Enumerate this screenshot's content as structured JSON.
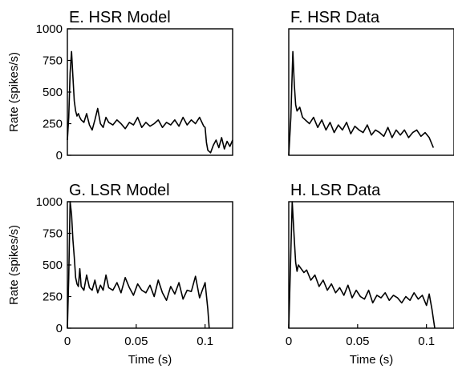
{
  "figure": {
    "ylabel": "Rate (spikes/s)",
    "xlabel": "Time (s)"
  },
  "chart_data": [
    {
      "type": "line",
      "title": "E. HSR Model",
      "xlabel": "",
      "ylabel": "Rate (spikes/s)",
      "xlim": [
        0,
        0.12
      ],
      "ylim": [
        0,
        1000
      ],
      "yticks": [
        "0",
        "250",
        "500",
        "750",
        "1000"
      ],
      "xticks": [],
      "series": [
        {
          "x": [
            0.0,
            0.001,
            0.002,
            0.003,
            0.004,
            0.005,
            0.006,
            0.007,
            0.008,
            0.009,
            0.01,
            0.012,
            0.014,
            0.016,
            0.018,
            0.02,
            0.022,
            0.024,
            0.026,
            0.028,
            0.03,
            0.033,
            0.036,
            0.039,
            0.042,
            0.045,
            0.048,
            0.051,
            0.054,
            0.057,
            0.06,
            0.063,
            0.066,
            0.069,
            0.072,
            0.075,
            0.078,
            0.081,
            0.084,
            0.087,
            0.09,
            0.093,
            0.096,
            0.099,
            0.1,
            0.101,
            0.102,
            0.104,
            0.106,
            0.108,
            0.11,
            0.112,
            0.114,
            0.116,
            0.118,
            0.12
          ],
          "values": [
            120,
            300,
            650,
            820,
            620,
            430,
            350,
            310,
            330,
            300,
            280,
            260,
            330,
            240,
            200,
            280,
            370,
            250,
            220,
            300,
            260,
            240,
            280,
            250,
            210,
            260,
            240,
            300,
            220,
            260,
            230,
            250,
            280,
            220,
            260,
            240,
            280,
            230,
            300,
            240,
            280,
            250,
            300,
            230,
            220,
            100,
            40,
            20,
            80,
            120,
            60,
            140,
            50,
            110,
            70,
            120
          ]
        }
      ]
    },
    {
      "type": "line",
      "title": "F. HSR Data",
      "xlabel": "",
      "ylabel": "",
      "xlim": [
        0,
        0.12
      ],
      "ylim": [
        0,
        1000
      ],
      "yticks": [],
      "xticks": [],
      "series": [
        {
          "x": [
            0.0,
            0.0015,
            0.003,
            0.004,
            0.005,
            0.006,
            0.008,
            0.01,
            0.012,
            0.015,
            0.018,
            0.021,
            0.024,
            0.027,
            0.03,
            0.033,
            0.036,
            0.039,
            0.042,
            0.045,
            0.048,
            0.051,
            0.054,
            0.057,
            0.06,
            0.063,
            0.066,
            0.069,
            0.072,
            0.075,
            0.078,
            0.081,
            0.084,
            0.087,
            0.09,
            0.093,
            0.096,
            0.099,
            0.102,
            0.105
          ],
          "values": [
            0,
            300,
            820,
            560,
            400,
            350,
            380,
            300,
            280,
            250,
            300,
            220,
            280,
            200,
            260,
            180,
            240,
            200,
            260,
            170,
            230,
            200,
            180,
            240,
            160,
            200,
            180,
            150,
            220,
            140,
            200,
            160,
            200,
            140,
            180,
            200,
            150,
            180,
            140,
            60
          ]
        }
      ]
    },
    {
      "type": "line",
      "title": "G. LSR Model",
      "xlabel": "Time (s)",
      "ylabel": "Rate (spikes/s)",
      "xlim": [
        0,
        0.12
      ],
      "ylim": [
        0,
        1000
      ],
      "yticks": [
        "0",
        "250",
        "500",
        "750",
        "1000"
      ],
      "xticks": [
        "0",
        "0.05",
        "0.1"
      ],
      "series": [
        {
          "x": [
            0.0,
            0.001,
            0.002,
            0.003,
            0.004,
            0.005,
            0.006,
            0.007,
            0.008,
            0.009,
            0.01,
            0.012,
            0.014,
            0.016,
            0.018,
            0.02,
            0.022,
            0.024,
            0.026,
            0.028,
            0.03,
            0.033,
            0.036,
            0.039,
            0.042,
            0.045,
            0.048,
            0.051,
            0.054,
            0.057,
            0.06,
            0.063,
            0.066,
            0.069,
            0.072,
            0.075,
            0.078,
            0.081,
            0.084,
            0.087,
            0.09,
            0.093,
            0.096,
            0.098,
            0.1,
            0.102,
            0.103
          ],
          "values": [
            0,
            400,
            1000,
            900,
            700,
            560,
            400,
            350,
            330,
            470,
            330,
            300,
            420,
            320,
            300,
            380,
            280,
            340,
            300,
            420,
            320,
            300,
            360,
            280,
            400,
            320,
            260,
            350,
            300,
            280,
            340,
            250,
            380,
            280,
            220,
            330,
            270,
            360,
            230,
            300,
            290,
            410,
            240,
            300,
            360,
            150,
            0
          ]
        }
      ]
    },
    {
      "type": "line",
      "title": "H. LSR Data",
      "xlabel": "Time (s)",
      "ylabel": "",
      "xlim": [
        0,
        0.12
      ],
      "ylim": [
        0,
        1000
      ],
      "yticks": [],
      "xticks": [
        "0",
        "0.05",
        "0.1"
      ],
      "series": [
        {
          "x": [
            0.0,
            0.0025,
            0.004,
            0.005,
            0.006,
            0.007,
            0.009,
            0.011,
            0.013,
            0.016,
            0.019,
            0.022,
            0.025,
            0.028,
            0.031,
            0.034,
            0.037,
            0.04,
            0.043,
            0.046,
            0.049,
            0.052,
            0.055,
            0.058,
            0.061,
            0.064,
            0.067,
            0.07,
            0.073,
            0.076,
            0.079,
            0.082,
            0.085,
            0.088,
            0.091,
            0.094,
            0.097,
            0.1,
            0.102,
            0.104,
            0.106
          ],
          "values": [
            0,
            1000,
            700,
            520,
            450,
            500,
            470,
            440,
            460,
            380,
            420,
            330,
            380,
            300,
            350,
            280,
            320,
            260,
            340,
            240,
            300,
            250,
            230,
            300,
            200,
            260,
            240,
            280,
            220,
            260,
            240,
            200,
            250,
            220,
            280,
            230,
            260,
            180,
            270,
            150,
            0
          ]
        }
      ]
    }
  ]
}
